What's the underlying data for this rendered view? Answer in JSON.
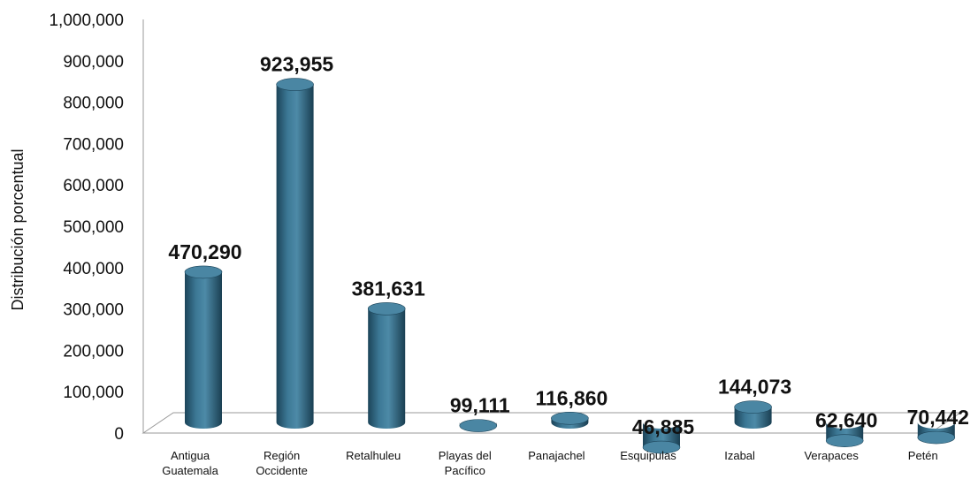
{
  "chart_data": {
    "type": "bar",
    "title": "",
    "xlabel": "",
    "ylabel": "Distribución porcentual",
    "ylim": [
      0,
      1000000
    ],
    "yticks": [
      "0",
      "100,000",
      "200,000",
      "300,000",
      "400,000",
      "500,000",
      "600,000",
      "700,000",
      "800,000",
      "900,000",
      "1,000,000"
    ],
    "categories": [
      [
        "Antigua",
        "Guatemala"
      ],
      [
        "Región",
        "Occidente"
      ],
      [
        "Retalhuleu"
      ],
      [
        "Playas del",
        "Pacífico"
      ],
      [
        "Panajachel"
      ],
      [
        "Esquipulas"
      ],
      [
        "Izabal"
      ],
      [
        "Verapaces"
      ],
      [
        "Petén"
      ]
    ],
    "values": [
      470290,
      923955,
      381631,
      99111,
      116860,
      46885,
      144073,
      62640,
      70442
    ],
    "data_labels": [
      "470,290",
      "923,955",
      "381,631",
      "99,111",
      "116,860",
      "46,885",
      "144,073",
      "62,640",
      "70,442"
    ],
    "grid": false,
    "legend": "none",
    "bar_style": "3d-cylinder",
    "colors": {
      "bar": "#2f6782",
      "bar_dark": "#1c4459",
      "bar_light": "#5a96b3",
      "bar_top": "#4a86a3",
      "axis": "#999999"
    }
  }
}
